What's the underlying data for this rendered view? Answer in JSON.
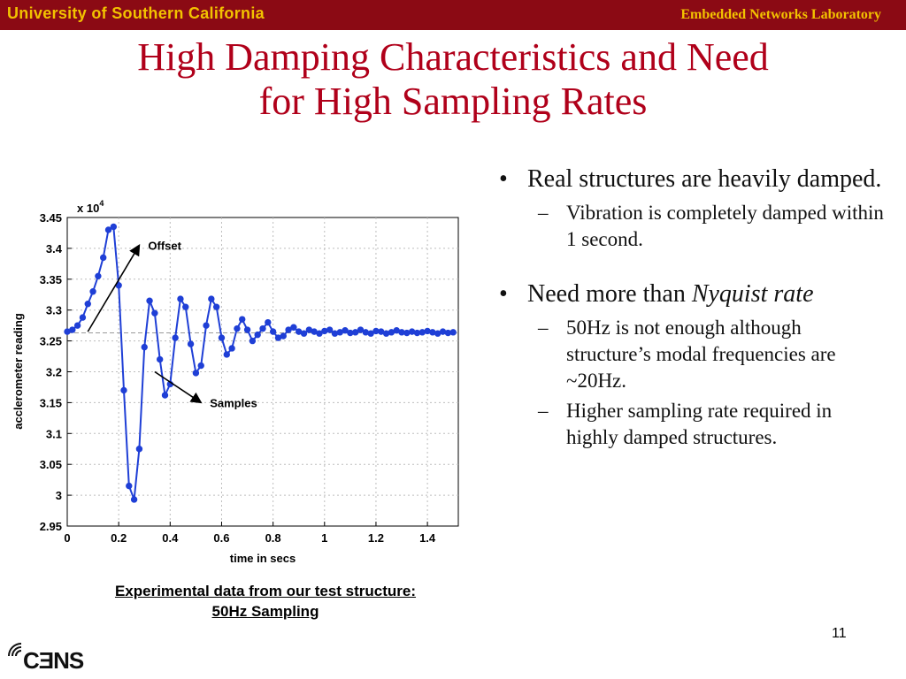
{
  "header": {
    "university": "University of Southern California",
    "lab": "Embedded Networks Laboratory",
    "bar_color": "#8b0a14",
    "text_color": "#f2c200"
  },
  "slide": {
    "title_line1": "High Damping Characteristics and Need",
    "title_line2": "for High Sampling Rates",
    "title_color": "#b0001a",
    "bullets": [
      {
        "text": "Real structures are heavily damped.",
        "sub": [
          "Vibration is completely damped within 1 second."
        ]
      },
      {
        "text_pre": "Need more than ",
        "text_em": "Nyquist rate",
        "sub": [
          "50Hz is not enough although structure’s modal frequencies are ~20Hz.",
          "Higher sampling rate required in highly damped structures."
        ]
      }
    ],
    "caption_line1": "Experimental data from our test structure:",
    "caption_line2": "50Hz Sampling",
    "page_number": "11",
    "logo_text": "CƎNS"
  },
  "chart_data": {
    "type": "line",
    "xlabel": "time in secs",
    "ylabel": "acclerometer reading",
    "scale_label": "x 10",
    "scale_exp": "4",
    "xlim": [
      0,
      1.52
    ],
    "ylim": [
      2.95,
      3.45
    ],
    "xticks": [
      0,
      0.2,
      0.4,
      0.6,
      0.8,
      1,
      1.2,
      1.4
    ],
    "xtick_labels": [
      "0",
      "0.2",
      "0.4",
      "0.6",
      "0.8",
      "1",
      "1.2",
      "1.4"
    ],
    "yticks": [
      2.95,
      3,
      3.05,
      3.1,
      3.15,
      3.2,
      3.25,
      3.3,
      3.35,
      3.4,
      3.45
    ],
    "ytick_labels": [
      "2.95",
      "3",
      "3.05",
      "3.1",
      "3.15",
      "3.2",
      "3.25",
      "3.3",
      "3.35",
      "3.4",
      "3.45"
    ],
    "grid": true,
    "offset_level": 3.263,
    "series": [
      {
        "color": "#1f3fd6",
        "x": [
          0.0,
          0.02,
          0.04,
          0.06,
          0.08,
          0.1,
          0.12,
          0.14,
          0.16,
          0.18,
          0.2,
          0.22,
          0.24,
          0.26,
          0.28,
          0.3,
          0.32,
          0.34,
          0.36,
          0.38,
          0.4,
          0.42,
          0.44,
          0.46,
          0.48,
          0.5,
          0.52,
          0.54,
          0.56,
          0.58,
          0.6,
          0.62,
          0.64,
          0.66,
          0.68,
          0.7,
          0.72,
          0.74,
          0.76,
          0.78,
          0.8,
          0.82,
          0.84,
          0.86,
          0.88,
          0.9,
          0.92,
          0.94,
          0.96,
          0.98,
          1.0,
          1.02,
          1.04,
          1.06,
          1.08,
          1.1,
          1.12,
          1.14,
          1.16,
          1.18,
          1.2,
          1.22,
          1.24,
          1.26,
          1.28,
          1.3,
          1.32,
          1.34,
          1.36,
          1.38,
          1.4,
          1.42,
          1.44,
          1.46,
          1.48,
          1.5
        ],
        "y": [
          3.265,
          3.268,
          3.275,
          3.288,
          3.31,
          3.33,
          3.355,
          3.385,
          3.43,
          3.435,
          3.34,
          3.17,
          3.015,
          2.993,
          3.075,
          3.24,
          3.315,
          3.295,
          3.22,
          3.162,
          3.18,
          3.255,
          3.318,
          3.305,
          3.245,
          3.198,
          3.21,
          3.275,
          3.318,
          3.305,
          3.255,
          3.228,
          3.238,
          3.27,
          3.285,
          3.268,
          3.25,
          3.26,
          3.27,
          3.28,
          3.265,
          3.255,
          3.258,
          3.268,
          3.272,
          3.265,
          3.262,
          3.268,
          3.265,
          3.262,
          3.266,
          3.268,
          3.262,
          3.264,
          3.267,
          3.263,
          3.264,
          3.268,
          3.264,
          3.262,
          3.266,
          3.265,
          3.262,
          3.264,
          3.267,
          3.264,
          3.263,
          3.265,
          3.263,
          3.264,
          3.266,
          3.264,
          3.262,
          3.265,
          3.263,
          3.264
        ]
      }
    ],
    "annotations": [
      {
        "text": "Offset",
        "arrow_from": [
          0.08,
          3.265
        ],
        "arrow_to": [
          0.28,
          3.405
        ]
      },
      {
        "text": "Samples",
        "arrow_from": [
          0.34,
          3.2
        ],
        "arrow_to": [
          0.52,
          3.15
        ]
      }
    ]
  }
}
